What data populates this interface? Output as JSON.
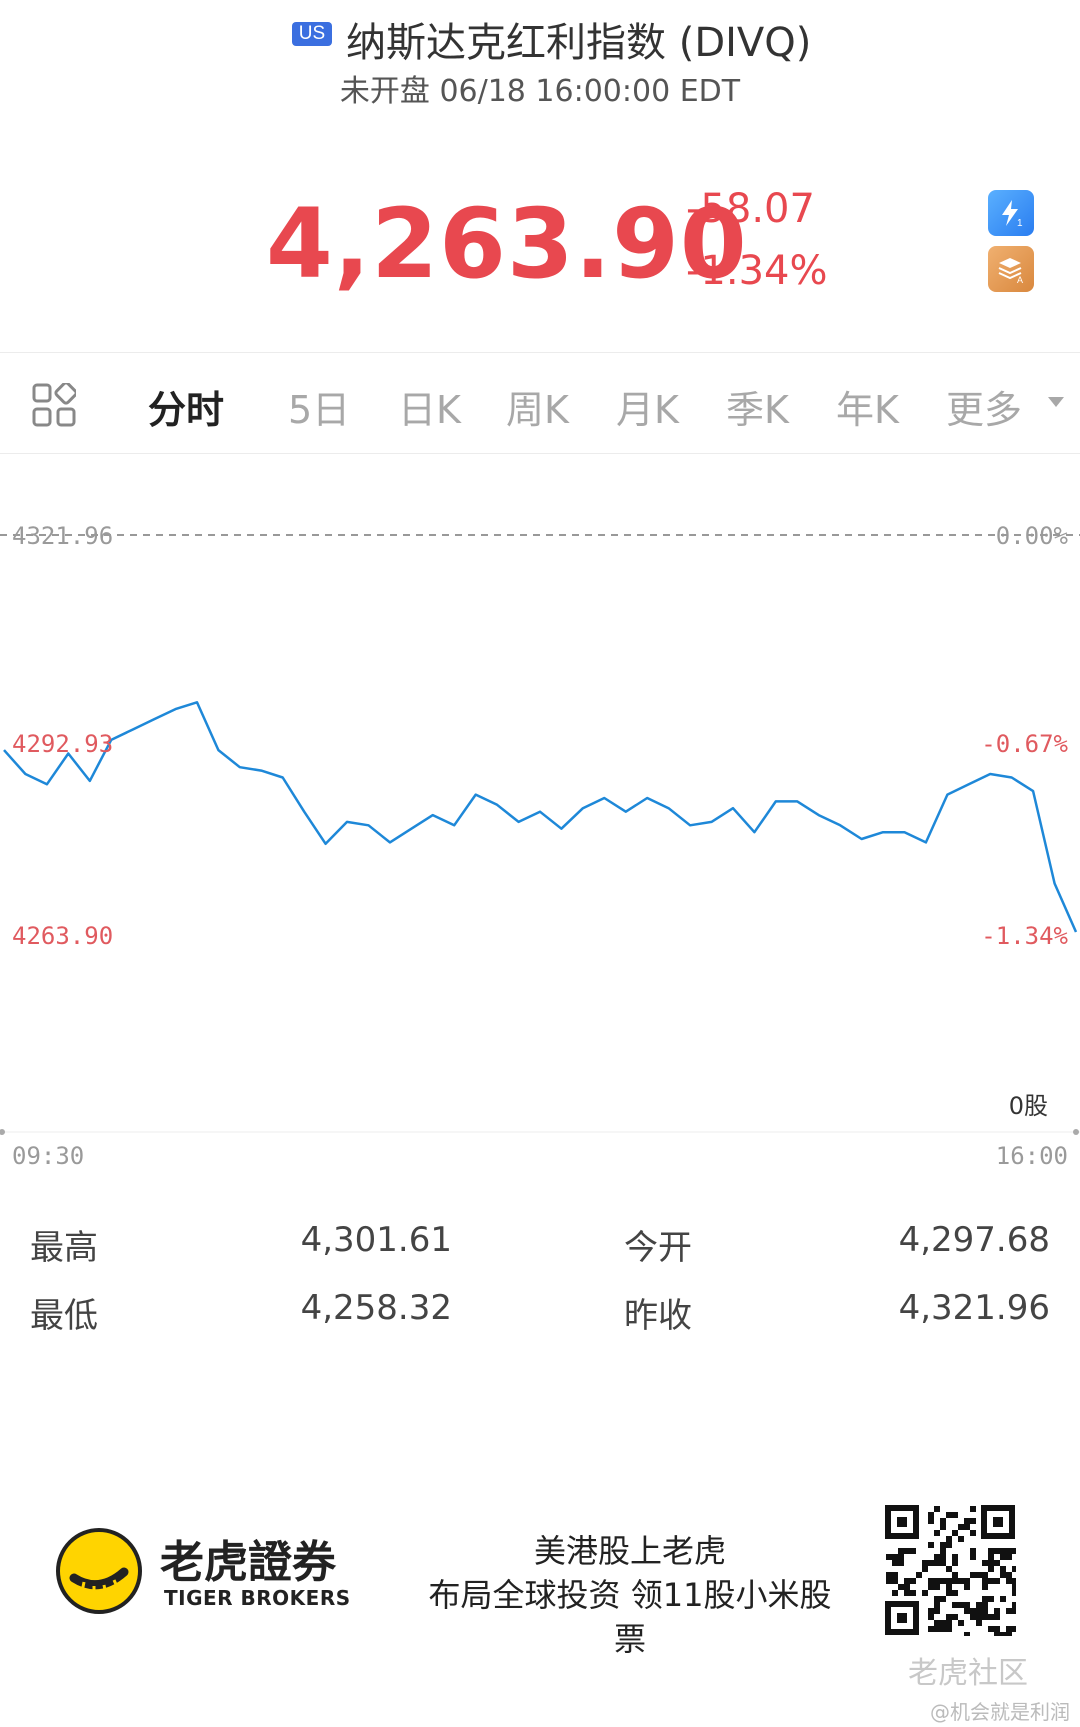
{
  "header": {
    "market_badge": "US",
    "title": "纳斯达克红利指数 (DIVQ)",
    "status": "未开盘 06/18 16:00:00 EDT"
  },
  "quote": {
    "last_price": "4,263.90",
    "change": "-58.07",
    "change_percent": "-1.34%",
    "color_down": "#e8484f"
  },
  "side_icons": [
    "lightning-icon",
    "layers-icon"
  ],
  "tabs": {
    "items": [
      "分时",
      "5日",
      "日K",
      "周K",
      "月K",
      "季K",
      "年K",
      "更多"
    ],
    "active": "分时"
  },
  "chart_data": {
    "type": "line",
    "y_left_labels": [
      "4321.96",
      "4292.93",
      "4263.90"
    ],
    "y_right_labels": [
      "0.00%",
      "-0.67%",
      "-1.34%"
    ],
    "volume_label": "0股",
    "x_labels": [
      "09:30",
      "16:00"
    ],
    "ylim": [
      4263.9,
      4321.96
    ],
    "reference_line": 4321.96,
    "line_color": "#1e88d8",
    "series": [
      {
        "x": [
          0,
          2,
          4,
          6,
          8,
          10,
          12,
          14,
          16,
          18,
          20,
          22,
          24,
          26,
          28,
          30,
          32,
          34,
          36,
          38,
          40,
          42,
          44,
          46,
          48,
          50,
          52,
          54,
          56,
          58,
          60,
          62,
          64,
          66,
          68,
          70,
          72,
          74,
          76,
          78,
          80,
          82,
          84,
          86,
          88,
          90,
          92,
          94,
          96,
          98,
          100
        ],
        "values": [
          4290.5,
          4287.0,
          4285.5,
          4290.0,
          4286.0,
          4292.0,
          4293.5,
          4295.0,
          4296.5,
          4297.5,
          4290.5,
          4288.0,
          4287.5,
          4286.5,
          4281.5,
          4276.8,
          4280.0,
          4279.5,
          4277.0,
          4279.0,
          4281.0,
          4279.5,
          4284.0,
          4282.5,
          4280.0,
          4281.5,
          4279.0,
          4282.0,
          4283.5,
          4281.5,
          4283.5,
          4282.0,
          4279.5,
          4280.0,
          4282.0,
          4278.5,
          4283.0,
          4283.0,
          4281.0,
          4279.5,
          4277.5,
          4278.5,
          4278.5,
          4277.0,
          4284.0,
          4285.5,
          4287.0,
          4286.5,
          4284.5,
          4271.0,
          4263.9
        ]
      }
    ]
  },
  "stats": {
    "high_label": "最高",
    "high_value": "4,301.61",
    "open_label": "今开",
    "open_value": "4,297.68",
    "low_label": "最低",
    "low_value": "4,258.32",
    "prev_close_label": "昨收",
    "prev_close_value": "4,321.96"
  },
  "footer": {
    "brand_cn": "老虎證券",
    "brand_en": "TIGER BROKERS",
    "promo_line1": "美港股上老虎",
    "promo_line2": "布局全球投资 领11股小米股",
    "promo_line3": "票",
    "watermark_community": "老虎社区",
    "watermark_user": "@机会就是利润"
  }
}
